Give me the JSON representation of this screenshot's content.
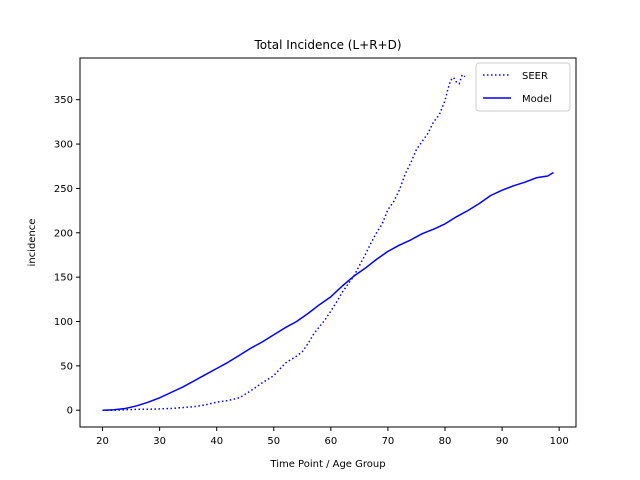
{
  "chart_data": {
    "type": "line",
    "title": "Total Incidence (L+R+D)",
    "xlabel": "Time Point / Age Group",
    "ylabel": "incidence",
    "xlim": [
      16.05,
      102.95
    ],
    "ylim": [
      -18.9,
      397
    ],
    "xticks": [
      20,
      30,
      40,
      50,
      60,
      70,
      80,
      90,
      100
    ],
    "yticks": [
      0,
      50,
      100,
      150,
      200,
      250,
      300,
      350
    ],
    "legend_position": "top-right",
    "grid": false,
    "series": [
      {
        "name": "SEER",
        "style": "dotted",
        "color": "#0000ff",
        "x": [
          20,
          22,
          24,
          26,
          28,
          30,
          32,
          34,
          36,
          38,
          40,
          42,
          44,
          46,
          48,
          50,
          52,
          54,
          55,
          56,
          57,
          58,
          59,
          60,
          61,
          62,
          63,
          64,
          65,
          66,
          67,
          68,
          69,
          70,
          71,
          72,
          73,
          74,
          75,
          76,
          77,
          78,
          79,
          80,
          80.5,
          81,
          81.5,
          82,
          82.5,
          83,
          83.5
        ],
        "y": [
          0,
          0,
          0.5,
          1,
          1,
          1.5,
          2,
          3,
          4,
          6,
          9,
          11,
          14,
          22,
          31,
          39,
          53,
          61,
          66,
          75,
          86,
          94,
          102,
          112,
          122,
          133,
          142,
          151,
          163,
          175,
          188,
          200,
          210,
          226,
          235,
          248,
          266,
          279,
          294,
          303,
          312,
          325,
          333,
          349,
          362,
          372,
          375,
          370,
          368,
          378,
          376
        ]
      },
      {
        "name": "Model",
        "style": "solid",
        "color": "#0000ff",
        "x": [
          20,
          22,
          24,
          26,
          28,
          30,
          32,
          34,
          36,
          38,
          40,
          42,
          44,
          46,
          48,
          50,
          52,
          54,
          56,
          58,
          60,
          62,
          64,
          66,
          68,
          70,
          72,
          74,
          76,
          78,
          80,
          82,
          84,
          86,
          88,
          90,
          92,
          94,
          96,
          98,
          99
        ],
        "y": [
          0,
          0.5,
          2,
          5,
          9,
          14,
          20,
          26,
          33,
          40,
          47,
          54,
          62,
          70,
          77,
          85,
          93,
          100,
          109,
          119,
          128,
          140,
          151,
          160,
          170,
          179,
          186,
          192,
          199,
          204,
          210,
          218,
          225,
          233,
          242,
          248,
          253,
          257,
          262,
          264,
          268
        ]
      }
    ]
  }
}
